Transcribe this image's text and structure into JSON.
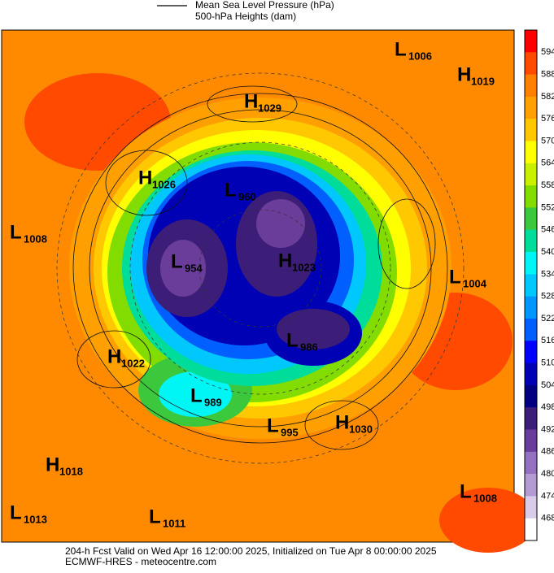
{
  "header": {
    "legend": [
      "Mean Sea Level Pressure (hPa)",
      "500-hPa Heights (dam)"
    ]
  },
  "centers": [
    {
      "letter": "L",
      "value": "1006"
    },
    {
      "letter": "H",
      "value": "1019"
    },
    {
      "letter": "H",
      "value": "1029"
    },
    {
      "letter": "H",
      "value": "1026"
    },
    {
      "letter": "L",
      "value": "960"
    },
    {
      "letter": "L",
      "value": "1008"
    },
    {
      "letter": "L",
      "value": "954"
    },
    {
      "letter": "H",
      "value": "1023"
    },
    {
      "letter": "L",
      "value": "1004"
    },
    {
      "letter": "L",
      "value": "986"
    },
    {
      "letter": "H",
      "value": "1022"
    },
    {
      "letter": "L",
      "value": "989"
    },
    {
      "letter": "L",
      "value": "995"
    },
    {
      "letter": "H",
      "value": "1030"
    },
    {
      "letter": "H",
      "value": "1018"
    },
    {
      "letter": "L",
      "value": "1008"
    },
    {
      "letter": "L",
      "value": "1013"
    },
    {
      "letter": "L",
      "value": "1011"
    }
  ],
  "colorbar": {
    "labels": [
      "594",
      "588",
      "582",
      "576",
      "570",
      "564",
      "558",
      "552",
      "546",
      "540",
      "534",
      "528",
      "522",
      "516",
      "510",
      "504",
      "498",
      "492",
      "486",
      "480",
      "474",
      "468"
    ],
    "colors": [
      "#ff0000",
      "#ff4a00",
      "#ff7f00",
      "#ffa000",
      "#ffc800",
      "#ffff00",
      "#c8f000",
      "#82dc00",
      "#3cc83c",
      "#00dc9a",
      "#00f5f5",
      "#00c8ff",
      "#0096ff",
      "#0060ff",
      "#0000ff",
      "#0000b4",
      "#000080",
      "#3c1e78",
      "#6a3d9a",
      "#9370c0",
      "#b49ad2",
      "#d8cce8",
      "#ffffff"
    ]
  },
  "footer": [
    "204-h Fcst Valid on Wed Apr 16 12:00:00 2025, Initialized on Tue Apr  8 00:00:00 2025",
    "ECMWF-HRES - meteocentre.com"
  ]
}
